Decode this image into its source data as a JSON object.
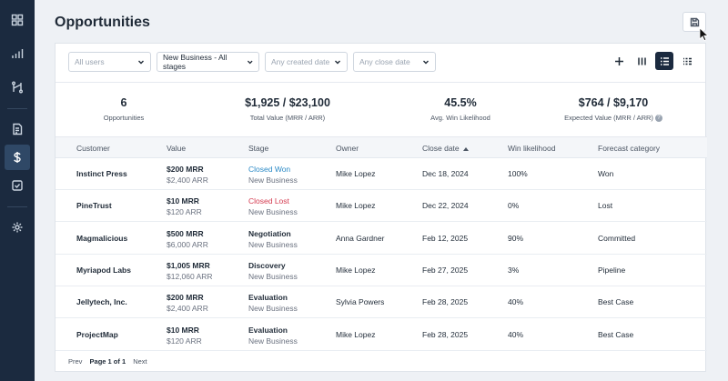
{
  "page_title": "Opportunities",
  "sidebar": {
    "items": [
      {
        "name": "dashboard-grid-icon"
      },
      {
        "name": "bar-chart-icon"
      },
      {
        "name": "pipeline-icon"
      },
      {
        "name": "report-icon"
      },
      {
        "name": "dollar-icon"
      },
      {
        "name": "task-check-icon"
      },
      {
        "name": "settings-gear-icon"
      }
    ],
    "active": "dollar-icon"
  },
  "filters": {
    "users_placeholder": "All users",
    "stage_value": "New Business - All stages",
    "created_placeholder": "Any created date",
    "close_placeholder": "Any close date"
  },
  "stats": {
    "count": "6",
    "count_label": "Opportunities",
    "total_value": "$1,925 / $23,100",
    "total_value_label": "Total Value (MRR / ARR)",
    "win_likelihood": "45.5%",
    "win_likelihood_label": "Avg. Win Likelihood",
    "expected_value": "$764 / $9,170",
    "expected_value_label": "Expected Value (MRR / ARR)"
  },
  "columns": [
    "Customer",
    "Value",
    "Stage",
    "Owner",
    "Close date",
    "Win likelihood",
    "Forecast category"
  ],
  "rows": [
    {
      "customer": "Instinct Press",
      "mrr": "$200 MRR",
      "arr": "$2,400 ARR",
      "stage": "Closed Won",
      "stage_type": "won",
      "pipeline": "New Business",
      "owner": "Mike Lopez",
      "close_date": "Dec 18, 2024",
      "win": "100%",
      "forecast": "Won"
    },
    {
      "customer": "PineTrust",
      "mrr": "$10 MRR",
      "arr": "$120 ARR",
      "stage": "Closed Lost",
      "stage_type": "lost",
      "pipeline": "New Business",
      "owner": "Mike Lopez",
      "close_date": "Dec 22, 2024",
      "win": "0%",
      "forecast": "Lost"
    },
    {
      "customer": "Magmalicious",
      "mrr": "$500 MRR",
      "arr": "$6,000 ARR",
      "stage": "Negotiation",
      "stage_type": "open",
      "pipeline": "New Business",
      "owner": "Anna Gardner",
      "close_date": "Feb 12, 2025",
      "win": "90%",
      "forecast": "Committed"
    },
    {
      "customer": "Myriapod Labs",
      "mrr": "$1,005 MRR",
      "arr": "$12,060 ARR",
      "stage": "Discovery",
      "stage_type": "open",
      "pipeline": "New Business",
      "owner": "Mike Lopez",
      "close_date": "Feb 27, 2025",
      "win": "3%",
      "forecast": "Pipeline"
    },
    {
      "customer": "Jellytech, Inc.",
      "mrr": "$200 MRR",
      "arr": "$2,400 ARR",
      "stage": "Evaluation",
      "stage_type": "open",
      "pipeline": "New Business",
      "owner": "Sylvia Powers",
      "close_date": "Feb 28, 2025",
      "win": "40%",
      "forecast": "Best Case"
    },
    {
      "customer": "ProjectMap",
      "mrr": "$10 MRR",
      "arr": "$120 ARR",
      "stage": "Evaluation",
      "stage_type": "open",
      "pipeline": "New Business",
      "owner": "Mike Lopez",
      "close_date": "Feb 28, 2025",
      "win": "40%",
      "forecast": "Best Case"
    }
  ],
  "pager": {
    "prev": "Prev",
    "current": "Page 1 of 1",
    "next": "Next"
  },
  "colors": {
    "sidebar": "#1b2a3f",
    "won": "#2b8ac6",
    "lost": "#d43a4f"
  }
}
